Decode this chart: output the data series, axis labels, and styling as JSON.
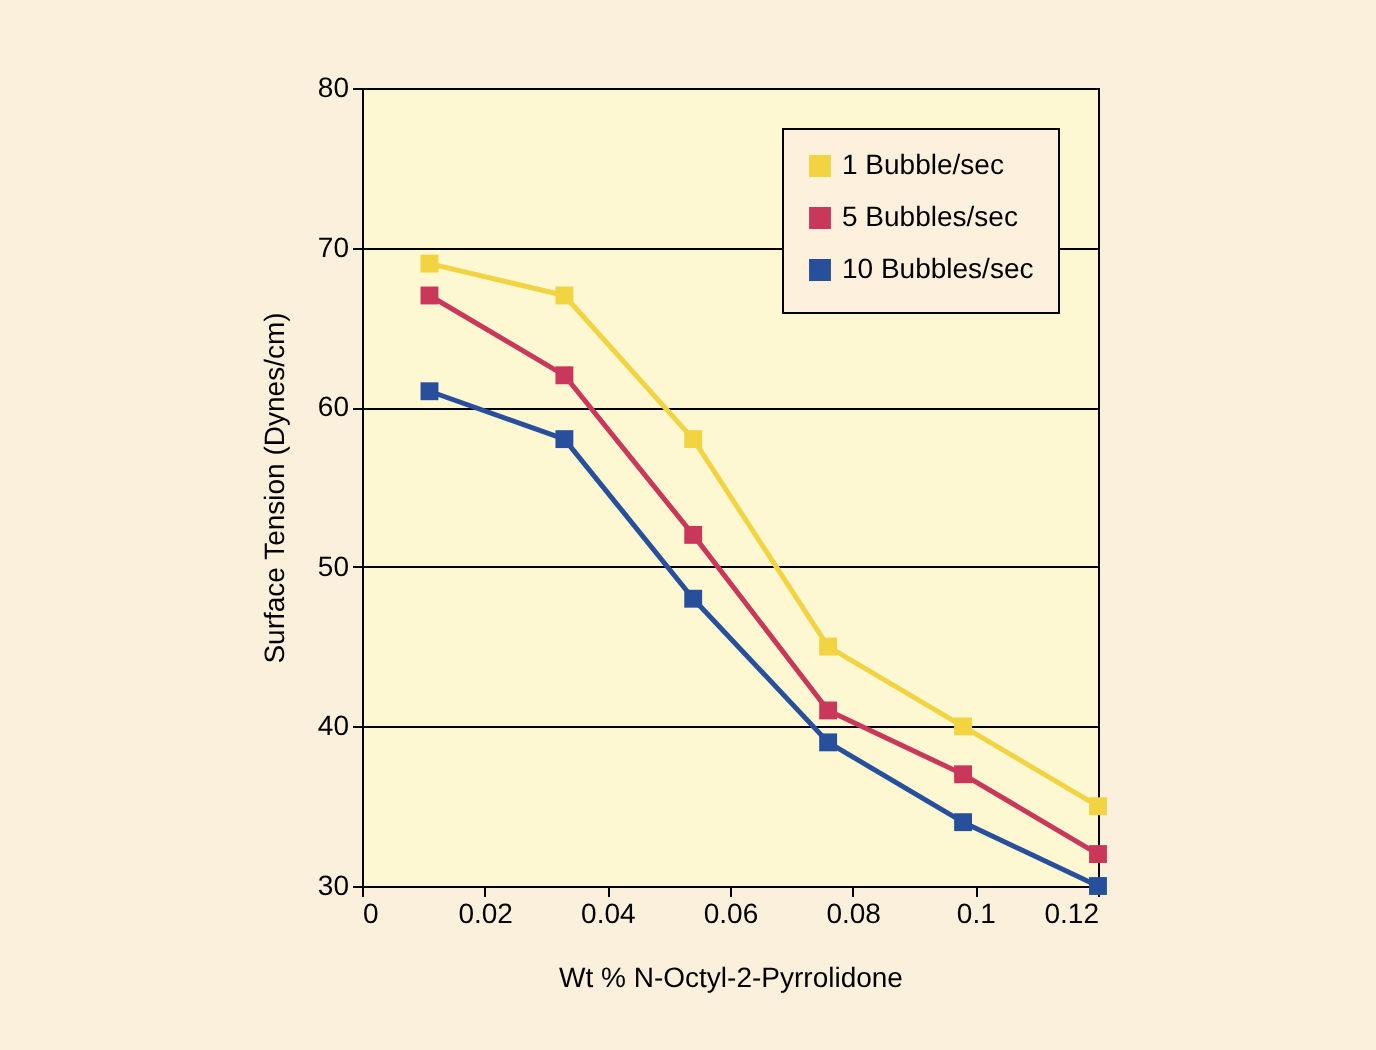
{
  "chart_data": {
    "type": "line",
    "xlabel": "Wt % N-Octyl-2-Pyrrolidone",
    "ylabel": "Surface Tension (Dynes/cm)",
    "x": [
      0.011,
      0.033,
      0.054,
      0.076,
      0.098,
      0.12
    ],
    "series": [
      {
        "name": "1 Bubble/sec",
        "color": "#f2d342",
        "values": [
          69,
          67,
          58,
          45,
          40,
          35
        ]
      },
      {
        "name": "5 Bubbles/sec",
        "color": "#c9385b",
        "values": [
          67,
          62,
          52,
          41,
          37,
          32
        ]
      },
      {
        "name": "10 Bubbles/sec",
        "color": "#284f9c",
        "values": [
          61,
          58,
          48,
          39,
          34,
          30
        ]
      }
    ],
    "xlim": [
      0,
      0.12
    ],
    "xticks": [
      0,
      0.02,
      0.04,
      0.06,
      0.08,
      0.1,
      0.12
    ],
    "ylim": [
      30,
      80
    ],
    "yticks": [
      30,
      40,
      50,
      60,
      70,
      80
    ],
    "grid": "y",
    "legend": "top right",
    "marker": "square",
    "line_style": "solid"
  }
}
